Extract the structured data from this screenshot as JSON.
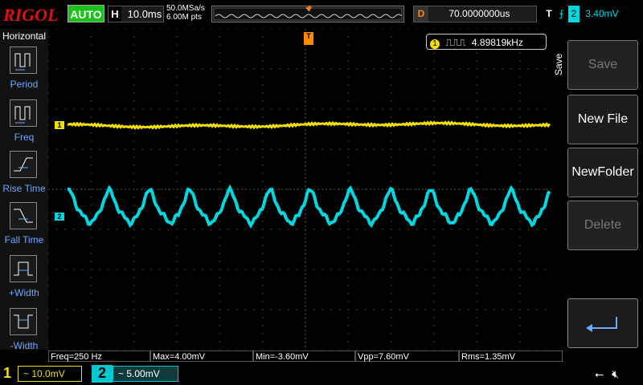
{
  "header": {
    "brand": "RIGOL",
    "run_mode": "AUTO",
    "timebase_label": "H",
    "timebase_value": "10.0ms",
    "sample_rate": "50.0MSa/s",
    "memory_depth": "6.00M pts",
    "delay_label": "D",
    "delay_value": "70.0000000us",
    "trigger_label": "T",
    "trigger_channel": "2",
    "trigger_level": "3.40mV"
  },
  "left_menu": {
    "title": "Horizontal",
    "items": [
      {
        "label": "Period",
        "icon": "period-icon"
      },
      {
        "label": "Freq",
        "icon": "freq-icon"
      },
      {
        "label": "Rise Time",
        "icon": "rise-time-icon"
      },
      {
        "label": "Fall Time",
        "icon": "fall-time-icon"
      },
      {
        "label": "+Width",
        "icon": "pos-width-icon"
      },
      {
        "label": "-Width",
        "icon": "neg-width-icon"
      }
    ]
  },
  "right_menu": {
    "title": "Save",
    "buttons": [
      {
        "label": "Save",
        "enabled": false
      },
      {
        "label": "New File",
        "enabled": true
      },
      {
        "label": "NewFolder",
        "enabled": true
      },
      {
        "label": "Delete",
        "enabled": false
      }
    ],
    "back_icon": "return-arrow-icon"
  },
  "counter": {
    "channel": "1",
    "value": "4.89819kHz"
  },
  "channel_markers": {
    "ch1": "1",
    "ch2": "2",
    "trigger_top": "T",
    "trigger_right": "T"
  },
  "measurements": [
    {
      "label": "Freq=250 Hz"
    },
    {
      "label": "Max=4.00mV"
    },
    {
      "label": "Min=-3.60mV"
    },
    {
      "label": "Vpp=7.60mV"
    },
    {
      "label": "Rms=1.35mV"
    }
  ],
  "bottom": {
    "ch1_number": "1",
    "ch1_scale": "~ 10.0mV",
    "ch2_number": "2",
    "ch2_scale": "~ 5.00mV"
  },
  "colors": {
    "ch1": "#f0e000",
    "ch2": "#00d8e0",
    "trigger": "#ff8a00",
    "accent_green": "#19c219",
    "brand_red": "#e01010"
  }
}
